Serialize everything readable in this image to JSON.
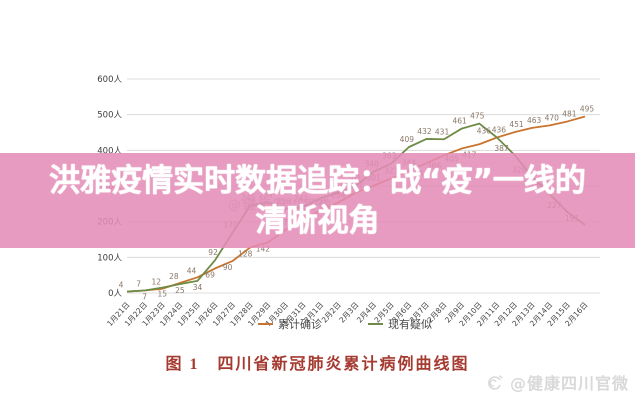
{
  "banner": {
    "title_line1": "洪雅疫情实时数据追踪：战“疫”一线的",
    "title_line2": "清晰视角",
    "bg_color": "#e38cb7",
    "text_color": "#ffffff"
  },
  "chart_data": {
    "type": "line",
    "title": "图 1　四川省新冠肺炎累计病例曲线图",
    "xlabel": "",
    "ylabel": "",
    "ylim": [
      0,
      600
    ],
    "grid": true,
    "legend_position": "bottom",
    "yticks": [
      "600人",
      "500人",
      "400人",
      "300人",
      "200人",
      "100人",
      "0人"
    ],
    "categories": [
      "1月21日",
      "1月22日",
      "1月23日",
      "1月24日",
      "1月25日",
      "1月26日",
      "1月27日",
      "1月28日",
      "1月29日",
      "1月30日",
      "1月31日",
      "2月1日",
      "2月2日",
      "2月3日",
      "2月4日",
      "2月5日",
      "2月6日",
      "2月7日",
      "2月8日",
      "2月9日",
      "2月10日",
      "2月11日",
      "2月12日",
      "2月13日",
      "2月14日",
      "2月15日",
      "2月16日"
    ],
    "series": [
      {
        "name": "累计确诊",
        "color": "#c8742f",
        "values": [
          4,
          7,
          12,
          28,
          44,
          69,
          90,
          128,
          142,
          177,
          207,
          231,
          254,
          282,
          301,
          321,
          344,
          364,
          386,
          405,
          417,
          436,
          451,
          463,
          470,
          481,
          495
        ]
      },
      {
        "name": "现有疑似",
        "color": "#6e8c46",
        "values": [
          4,
          7,
          15,
          25,
          34,
          92,
          170,
          245,
          254,
          236,
          242,
          266,
          281,
          301,
          340,
          363,
          409,
          432,
          431,
          461,
          475,
          436,
          387,
          326,
          277,
          227,
          191
        ]
      }
    ]
  },
  "legend": {
    "items": [
      {
        "label": "累计确诊",
        "color": "#c8742f"
      },
      {
        "label": "现有疑似",
        "color": "#6e8c46"
      }
    ]
  },
  "caption": {
    "text": "图 1　四川省新冠肺炎累计病例曲线图",
    "color": "#a53a30"
  },
  "watermark": {
    "text": "@健康四川官微"
  }
}
